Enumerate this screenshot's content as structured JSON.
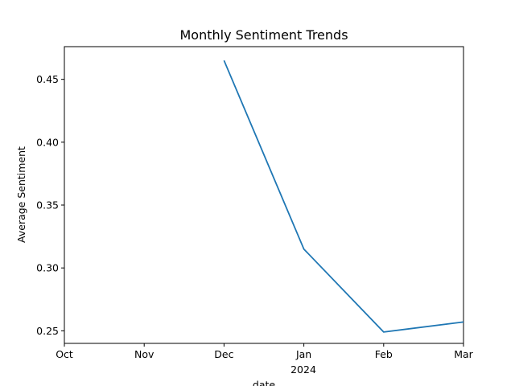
{
  "chart_data": {
    "type": "line",
    "title": "Monthly Sentiment Trends",
    "xlabel": "date",
    "ylabel": "Average Sentiment",
    "x_ticks": [
      {
        "date": "2023-10",
        "label": "Oct"
      },
      {
        "date": "2023-11",
        "label": "Nov"
      },
      {
        "date": "2023-12",
        "label": "Dec"
      },
      {
        "date": "2024-01",
        "label": "Jan"
      },
      {
        "date": "2024-02",
        "label": "Feb"
      },
      {
        "date": "2024-03",
        "label": "Mar"
      }
    ],
    "x_secondary_label": "2024",
    "xlim": [
      "2023-10",
      "2024-03"
    ],
    "ylim": [
      0.24,
      0.476
    ],
    "y_ticks": [
      0.25,
      0.3,
      0.35,
      0.4,
      0.45
    ],
    "grid": false,
    "series": [
      {
        "color": "#1f77b4",
        "points": [
          {
            "x": "2023-12",
            "y": 0.465
          },
          {
            "x": "2024-01",
            "y": 0.315
          },
          {
            "x": "2024-02",
            "y": 0.249
          },
          {
            "x": "2024-03",
            "y": 0.257
          }
        ]
      }
    ]
  }
}
